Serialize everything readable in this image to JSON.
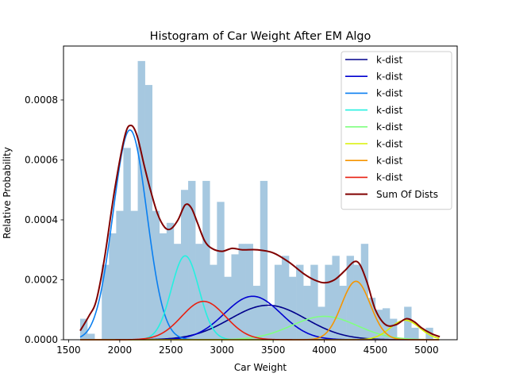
{
  "chart_data": {
    "type": "bar",
    "title": "Histogram of Car Weight After EM Algo",
    "xlabel": "Car Weight",
    "ylabel": "Relative Probability",
    "xlim": [
      1450,
      5300
    ],
    "ylim": [
      0,
      0.00098
    ],
    "xticks": [
      1500,
      2000,
      2500,
      3000,
      3500,
      4000,
      4500,
      5000
    ],
    "xtick_labels": [
      "1500",
      "2000",
      "2500",
      "3000",
      "3500",
      "4000",
      "4500",
      "5000"
    ],
    "yticks": [
      0,
      0.0002,
      0.0004,
      0.0006,
      0.0008
    ],
    "ytick_labels": [
      "0.0000",
      "0.0002",
      "0.0004",
      "0.0006",
      "0.0008"
    ],
    "grid": false,
    "legend_position": "top-right",
    "histogram": {
      "bin_start": 1613,
      "bin_width": 70.4,
      "color": "#a6c8e0",
      "values": [
        7e-05,
        2e-05,
        0.0,
        0.00025,
        0.000355,
        0.00043,
        0.00064,
        0.00043,
        0.00093,
        0.00085,
        0.00043,
        0.000355,
        0.00039,
        0.00032,
        0.0005,
        0.00053,
        0.00032,
        0.00053,
        0.00025,
        0.00046,
        0.00021,
        0.000285,
        0.00032,
        0.00032,
        0.00018,
        0.00053,
        0.00011,
        0.00025,
        0.00028,
        0.00021,
        0.00025,
        0.00018,
        0.00025,
        0.00011,
        0.00025,
        0.00028,
        0.00018,
        0.00028,
        0.00025,
        0.00032,
        0.00014,
        0.0001,
        0.000105,
        7e-05,
        0.0,
        0.00011,
        4e-05,
        0.0,
        4e-05
      ]
    },
    "series": [
      {
        "name": "k-dist",
        "color": "#00008b",
        "mu": 3450,
        "sigma": 370,
        "amp": 0.000115
      },
      {
        "name": "k-dist",
        "color": "#0000d0",
        "mu": 3300,
        "sigma": 275,
        "amp": 0.000145
      },
      {
        "name": "k-dist",
        "color": "#0a7ff0",
        "mu": 2100,
        "sigma": 165,
        "amp": 0.0007
      },
      {
        "name": "k-dist",
        "color": "#25f0e0",
        "mu": 2640,
        "sigma": 135,
        "amp": 0.00028
      },
      {
        "name": "k-dist",
        "color": "#80ff80",
        "mu": 4000,
        "sigma": 320,
        "amp": 7.8e-05
      },
      {
        "name": "k-dist",
        "color": "#d8f000",
        "mu": 4790,
        "sigma": 145,
        "amp": 6.5e-05
      },
      {
        "name": "k-dist",
        "color": "#f59500",
        "mu": 4310,
        "sigma": 140,
        "amp": 0.000195
      },
      {
        "name": "k-dist",
        "color": "#e82010",
        "mu": 2820,
        "sigma": 215,
        "amp": 0.000128
      },
      {
        "name": "Sum Of Dists",
        "color": "#800000",
        "points": [
          [
            1613,
            3e-05
          ],
          [
            1700,
            8e-05
          ],
          [
            1770,
            0.00013
          ],
          [
            1850,
            0.00027
          ],
          [
            1950,
            0.0005
          ],
          [
            2050,
            0.00068
          ],
          [
            2110,
            0.000715
          ],
          [
            2170,
            0.00068
          ],
          [
            2240,
            0.00058
          ],
          [
            2300,
            0.0005
          ],
          [
            2370,
            0.00042
          ],
          [
            2440,
            0.000375
          ],
          [
            2500,
            0.00037
          ],
          [
            2570,
            0.0004
          ],
          [
            2640,
            0.00045
          ],
          [
            2700,
            0.00044
          ],
          [
            2760,
            0.00039
          ],
          [
            2830,
            0.00033
          ],
          [
            2900,
            0.000305
          ],
          [
            3000,
            0.000295
          ],
          [
            3100,
            0.000305
          ],
          [
            3200,
            0.0003
          ],
          [
            3350,
            0.0003
          ],
          [
            3500,
            0.00029
          ],
          [
            3650,
            0.00026
          ],
          [
            3800,
            0.00022
          ],
          [
            3900,
            0.0002
          ],
          [
            4000,
            0.00019
          ],
          [
            4100,
            0.0002
          ],
          [
            4200,
            0.00023
          ],
          [
            4290,
            0.00026
          ],
          [
            4350,
            0.00025
          ],
          [
            4420,
            0.00019
          ],
          [
            4500,
            0.0001
          ],
          [
            4600,
            5e-05
          ],
          [
            4700,
            5e-05
          ],
          [
            4800,
            7e-05
          ],
          [
            4880,
            6e-05
          ],
          [
            4950,
            4e-05
          ],
          [
            5050,
            2e-05
          ],
          [
            5130,
            1e-05
          ]
        ]
      }
    ]
  }
}
